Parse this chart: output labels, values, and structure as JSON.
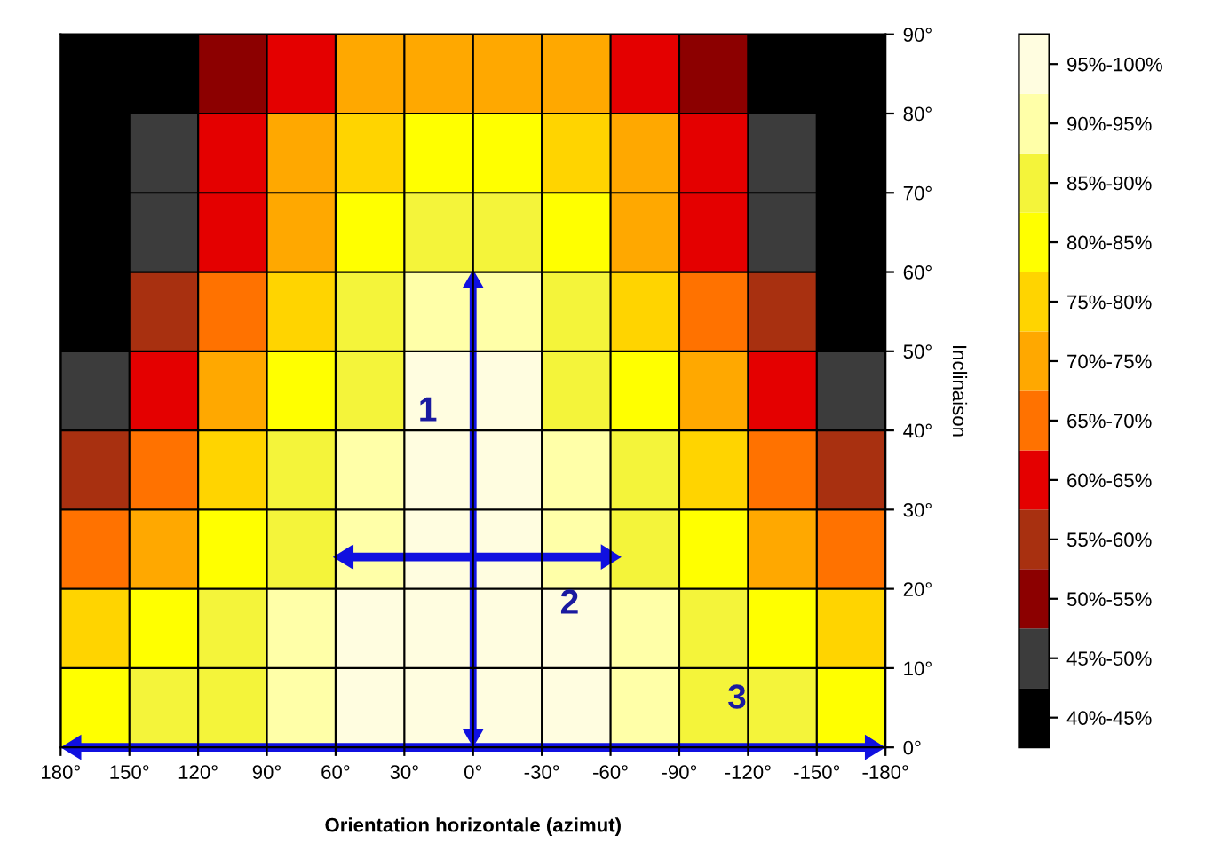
{
  "chart_data": {
    "type": "heatmap",
    "xlabel": "Orientation horizontale (azimut)",
    "ylabel": "Inclinaison",
    "xlim": [
      180,
      -180
    ],
    "xticks": [
      {
        "value": 180,
        "label": "180°"
      },
      {
        "value": 150,
        "label": "150°"
      },
      {
        "value": 120,
        "label": "120°"
      },
      {
        "value": 90,
        "label": "90°"
      },
      {
        "value": 60,
        "label": "60°"
      },
      {
        "value": 30,
        "label": "30°"
      },
      {
        "value": 0,
        "label": "0°"
      },
      {
        "value": -30,
        "label": "-30°"
      },
      {
        "value": -60,
        "label": "-60°"
      },
      {
        "value": -90,
        "label": "-90°"
      },
      {
        "value": -120,
        "label": "-120°"
      },
      {
        "value": -150,
        "label": "-150°"
      },
      {
        "value": -180,
        "label": "-180°"
      }
    ],
    "ylim": [
      0,
      90
    ],
    "yticks": [
      {
        "value": 0,
        "label": "0°"
      },
      {
        "value": 10,
        "label": "10°"
      },
      {
        "value": 20,
        "label": "20°"
      },
      {
        "value": 30,
        "label": "30°"
      },
      {
        "value": 40,
        "label": "40°"
      },
      {
        "value": 50,
        "label": "50°"
      },
      {
        "value": 60,
        "label": "60°"
      },
      {
        "value": 70,
        "label": "70°"
      },
      {
        "value": 80,
        "label": "80°"
      },
      {
        "value": 90,
        "label": "90°"
      }
    ],
    "cells": [
      [
        40,
        40,
        50,
        60,
        70,
        70,
        70,
        70,
        60,
        50,
        40,
        40
      ],
      [
        40,
        45,
        60,
        70,
        75,
        80,
        80,
        75,
        70,
        60,
        45,
        40
      ],
      [
        40,
        45,
        60,
        70,
        80,
        85,
        85,
        80,
        70,
        60,
        45,
        40
      ],
      [
        40,
        55,
        65,
        75,
        85,
        90,
        90,
        85,
        75,
        65,
        55,
        40
      ],
      [
        45,
        60,
        70,
        80,
        85,
        95,
        95,
        85,
        80,
        70,
        60,
        45
      ],
      [
        55,
        65,
        75,
        85,
        90,
        95,
        95,
        90,
        85,
        75,
        65,
        55
      ],
      [
        65,
        70,
        80,
        85,
        90,
        95,
        95,
        90,
        85,
        80,
        70,
        65
      ],
      [
        75,
        80,
        85,
        90,
        95,
        95,
        95,
        95,
        90,
        85,
        80,
        75
      ],
      [
        80,
        85,
        85,
        90,
        95,
        95,
        95,
        95,
        90,
        85,
        85,
        80
      ]
    ],
    "clim": [
      40,
      100
    ],
    "cticks": [
      {
        "value": 97.5,
        "label": "95%-100%"
      },
      {
        "value": 92.5,
        "label": "90%-95%"
      },
      {
        "value": 87.5,
        "label": "85%-90%"
      },
      {
        "value": 82.5,
        "label": "80%-85%"
      },
      {
        "value": 77.5,
        "label": "75%-80%"
      },
      {
        "value": 72.5,
        "label": "70%-75%"
      },
      {
        "value": 67.5,
        "label": "65%-70%"
      },
      {
        "value": 62.5,
        "label": "60%-65%"
      },
      {
        "value": 57.5,
        "label": "55%-60%"
      },
      {
        "value": 52.5,
        "label": "50%-55%"
      },
      {
        "value": 47.5,
        "label": "45%-50%"
      },
      {
        "value": 42.5,
        "label": "40%-45%"
      }
    ],
    "colors": [
      "#fffde0",
      "#ffffa8",
      "#f4f43a",
      "#ffff00",
      "#ffd400",
      "#ffa800",
      "#ff7200",
      "#e40000",
      "#a83010",
      "#8c0000",
      "#3c3c3c",
      "#000000"
    ],
    "grid": true,
    "annotations": [
      "1",
      "2",
      "3"
    ]
  }
}
